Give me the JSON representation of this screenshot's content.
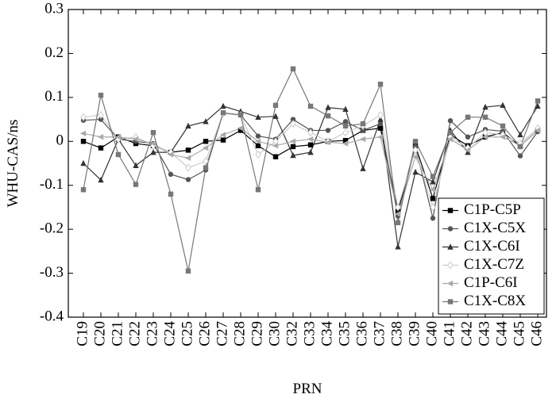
{
  "chart_data": {
    "type": "line",
    "ylabel": "WHU-CAS/ns",
    "xlabel": "PRN",
    "categories": [
      "C19",
      "C20",
      "C21",
      "C22",
      "C23",
      "C24",
      "C25",
      "C26",
      "C27",
      "C28",
      "C29",
      "C30",
      "C32",
      "C33",
      "C34",
      "C35",
      "C36",
      "C37",
      "C38",
      "C39",
      "C40",
      "C41",
      "C42",
      "C43",
      "C44",
      "C45",
      "C46"
    ],
    "ylim": [
      -0.4,
      0.3
    ],
    "yticks": [
      -0.4,
      -0.3,
      -0.2,
      -0.1,
      0,
      0.1,
      0.2,
      0.3
    ],
    "legend": "lower right",
    "series": [
      {
        "name": "C1P-C5P",
        "color": "#000000",
        "marker": "square",
        "values": [
          0,
          -0.015,
          0.01,
          -0.005,
          -0.01,
          -0.025,
          -0.02,
          0,
          0.003,
          0.025,
          -0.01,
          -0.035,
          -0.012,
          -0.008,
          0,
          0.002,
          0.025,
          0.03,
          -0.16,
          -0.01,
          -0.13,
          0.015,
          -0.01,
          0.01,
          0.02,
          -0.01,
          0.025
        ]
      },
      {
        "name": "C1X-C5X",
        "color": "#555555",
        "marker": "circle",
        "values": [
          0.048,
          0.05,
          0.005,
          0,
          -0.005,
          -0.075,
          -0.087,
          -0.065,
          0.065,
          0.06,
          0.012,
          0.005,
          0.05,
          0.025,
          0.025,
          0.045,
          0.025,
          0.04,
          -0.17,
          -0.012,
          -0.175,
          0.047,
          0.01,
          0.027,
          0.023,
          -0.033,
          0.022
        ]
      },
      {
        "name": "C1X-C6I",
        "color": "#333333",
        "marker": "triangle",
        "values": [
          -0.05,
          -0.088,
          0.005,
          -0.055,
          -0.025,
          -0.025,
          0.035,
          0.045,
          0.08,
          0.068,
          0.055,
          0.057,
          -0.032,
          -0.025,
          0.077,
          0.073,
          -0.062,
          0.05,
          -0.24,
          -0.07,
          -0.092,
          0.025,
          -0.025,
          0.078,
          0.082,
          0.015,
          0.08
        ]
      },
      {
        "name": "C1X-C7Z",
        "color": "#cccccc",
        "marker": "diamond",
        "values": [
          0.055,
          0.06,
          0.005,
          0.01,
          -0.01,
          -0.025,
          -0.06,
          -0.045,
          0.063,
          0.06,
          -0.03,
          0,
          0.04,
          0.02,
          0,
          0.02,
          0.035,
          0.06,
          -0.15,
          -0.02,
          -0.15,
          0.01,
          -0.015,
          0.02,
          0.015,
          -0.005,
          0.03
        ]
      },
      {
        "name": "C1P-C6I",
        "color": "#aaaaaa",
        "marker": "left-triangle",
        "values": [
          0.018,
          0.01,
          0.01,
          0.005,
          -0.005,
          -0.03,
          -0.038,
          -0.015,
          0.015,
          0.03,
          0,
          -0.01,
          0,
          0.005,
          -0.002,
          -0.005,
          0.005,
          0.01,
          -0.165,
          -0.035,
          -0.11,
          0.005,
          -0.02,
          0.01,
          0.01,
          -0.01,
          0.025
        ]
      },
      {
        "name": "C1X-C8X",
        "color": "#777777",
        "marker": "square",
        "values": [
          -0.11,
          0.105,
          -0.03,
          -0.098,
          0.02,
          -0.12,
          -0.295,
          -0.06,
          0.065,
          0.06,
          -0.11,
          0.082,
          0.165,
          0.08,
          0.058,
          0.035,
          0.04,
          0.13,
          -0.185,
          0,
          -0.08,
          0.02,
          0.055,
          0.055,
          0.035,
          -0.012,
          0.092
        ]
      }
    ]
  }
}
